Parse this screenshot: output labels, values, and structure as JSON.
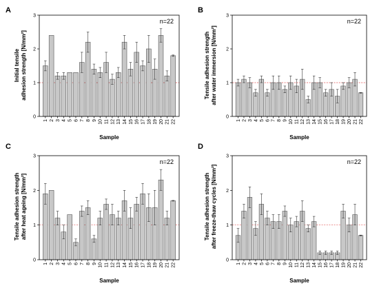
{
  "chart_data": [
    {
      "type": "bar",
      "panel": "A",
      "n_label": "n=22",
      "xlabel": "Sample",
      "ylabel_line1": "Initial tensile",
      "ylabel_line2": "adhesion strength [N/mm²]",
      "ylim": [
        0,
        3
      ],
      "yticks": [
        0,
        1,
        2,
        3
      ],
      "reference_line": 1,
      "categories": [
        "1",
        "2",
        "3",
        "4",
        "5",
        "6",
        "7",
        "8",
        "9",
        "10",
        "11",
        "12",
        "13",
        "14",
        "15",
        "16",
        "17",
        "18",
        "19",
        "20",
        "21",
        "22"
      ],
      "values": [
        1.5,
        2.4,
        1.2,
        1.2,
        1.3,
        1.3,
        1.6,
        2.2,
        1.4,
        1.3,
        1.6,
        1.1,
        1.3,
        2.2,
        1.4,
        1.9,
        1.5,
        2.0,
        1.4,
        2.4,
        1.2,
        1.8
      ],
      "errors": [
        0.15,
        0.0,
        0.1,
        0.1,
        0.0,
        0.0,
        0.3,
        0.3,
        0.15,
        0.15,
        0.3,
        0.15,
        0.15,
        0.2,
        0.2,
        0.3,
        0.15,
        0.4,
        0.3,
        0.2,
        0.15,
        0.02
      ]
    },
    {
      "type": "bar",
      "panel": "B",
      "n_label": "n=22",
      "xlabel": "Sample",
      "ylabel_line1": "Tensile adhesion strength",
      "ylabel_line2": "after water immersion [N/mm²]",
      "ylim": [
        0,
        3
      ],
      "yticks": [
        0,
        1,
        2,
        3
      ],
      "reference_line": 1,
      "categories": [
        "1",
        "2",
        "3",
        "4",
        "5",
        "6",
        "7",
        "8",
        "9",
        "10",
        "11",
        "12",
        "13",
        "14",
        "15",
        "16",
        "17",
        "18",
        "19",
        "20",
        "21",
        "22"
      ],
      "values": [
        1.0,
        1.1,
        1.0,
        0.7,
        1.1,
        0.7,
        1.0,
        1.0,
        0.8,
        1.0,
        0.9,
        1.1,
        0.5,
        1.0,
        1.0,
        0.7,
        0.8,
        0.6,
        0.9,
        1.0,
        1.1,
        0.7
      ],
      "errors": [
        0.1,
        0.1,
        0.15,
        0.1,
        0.1,
        0.1,
        0.2,
        0.2,
        0.1,
        0.2,
        0.2,
        0.3,
        0.1,
        0.2,
        0.15,
        0.1,
        0.2,
        0.2,
        0.1,
        0.15,
        0.2,
        0.01
      ]
    },
    {
      "type": "bar",
      "panel": "C",
      "n_label": "n=22",
      "xlabel": "Sample",
      "ylabel_line1": "Tensile adhesion strength",
      "ylabel_line2": "after heat ageing [N/mm²]",
      "ylim": [
        0,
        3
      ],
      "yticks": [
        0,
        1,
        2,
        3
      ],
      "reference_line": 1,
      "categories": [
        "1",
        "2",
        "3",
        "4",
        "5",
        "6",
        "7",
        "8",
        "9",
        "10",
        "11",
        "12",
        "13",
        "14",
        "15",
        "16",
        "17",
        "18",
        "19",
        "20",
        "21",
        "22"
      ],
      "values": [
        1.9,
        2.0,
        1.2,
        0.8,
        1.3,
        0.5,
        1.4,
        1.5,
        0.6,
        1.2,
        1.6,
        1.3,
        1.2,
        1.7,
        1.2,
        1.6,
        1.9,
        1.5,
        1.5,
        2.3,
        1.2,
        1.7
      ],
      "errors": [
        0.3,
        0.0,
        0.2,
        0.2,
        0.0,
        0.1,
        0.15,
        0.2,
        0.1,
        0.2,
        0.15,
        0.3,
        0.2,
        0.3,
        0.3,
        0.2,
        0.3,
        0.4,
        0.5,
        0.3,
        0.2,
        0.01
      ]
    },
    {
      "type": "bar",
      "panel": "D",
      "n_label": "n=22",
      "xlabel": "Sample",
      "ylabel_line1": "Tensile adhesion strength",
      "ylabel_line2": "after freeze-thaw cycles [N/mm²]",
      "ylim": [
        0,
        3
      ],
      "yticks": [
        0,
        1,
        2,
        3
      ],
      "reference_line": 1,
      "categories": [
        "1",
        "2",
        "3",
        "4",
        "5",
        "6",
        "7",
        "8",
        "9",
        "10",
        "11",
        "12",
        "13",
        "14",
        "15",
        "16",
        "17",
        "18",
        "19",
        "20",
        "21",
        "22"
      ],
      "values": [
        0.7,
        1.4,
        1.8,
        0.9,
        1.6,
        1.2,
        1.1,
        1.1,
        1.4,
        1.0,
        1.1,
        1.4,
        0.9,
        1.1,
        0.2,
        0.2,
        0.2,
        0.2,
        1.4,
        1.0,
        1.3,
        0.7
      ],
      "errors": [
        0.2,
        0.2,
        0.3,
        0.2,
        0.3,
        0.2,
        0.2,
        0.2,
        0.15,
        0.2,
        0.15,
        0.3,
        0.1,
        0.15,
        0.05,
        0.05,
        0.05,
        0.05,
        0.2,
        0.2,
        0.3,
        0.01
      ]
    }
  ]
}
